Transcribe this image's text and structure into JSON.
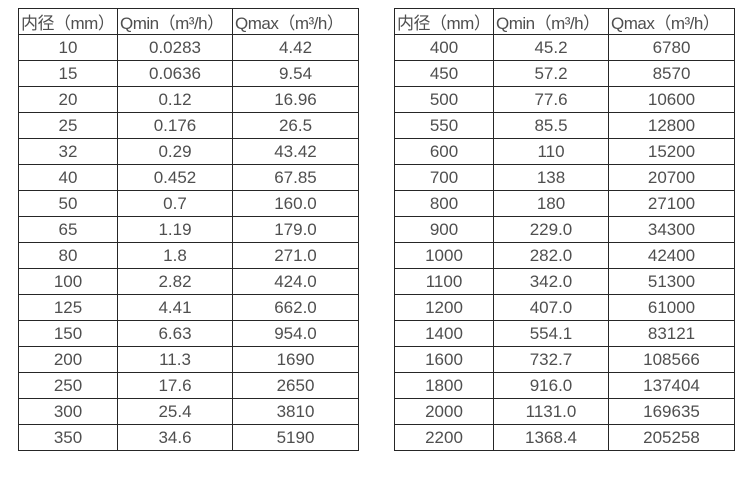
{
  "colors": {
    "background": "#ffffff",
    "border": "#262626",
    "text": "#4f4f4f"
  },
  "tables": [
    {
      "name": "flow-range-small-diameters",
      "headers": [
        "内径（mm）",
        "Qmin（m³/h）",
        "Qmax（m³/h）"
      ],
      "rows": [
        [
          "10",
          "0.0283",
          "4.42"
        ],
        [
          "15",
          "0.0636",
          "9.54"
        ],
        [
          "20",
          "0.12",
          "16.96"
        ],
        [
          "25",
          "0.176",
          "26.5"
        ],
        [
          "32",
          "0.29",
          "43.42"
        ],
        [
          "40",
          "0.452",
          "67.85"
        ],
        [
          "50",
          "0.7",
          "160.0"
        ],
        [
          "65",
          "1.19",
          "179.0"
        ],
        [
          "80",
          "1.8",
          "271.0"
        ],
        [
          "100",
          "2.82",
          "424.0"
        ],
        [
          "125",
          "4.41",
          "662.0"
        ],
        [
          "150",
          "6.63",
          "954.0"
        ],
        [
          "200",
          "11.3",
          "1690"
        ],
        [
          "250",
          "17.6",
          "2650"
        ],
        [
          "300",
          "25.4",
          "3810"
        ],
        [
          "350",
          "34.6",
          "5190"
        ]
      ]
    },
    {
      "name": "flow-range-large-diameters",
      "headers": [
        "内径（mm）",
        "Qmin（m³/h）",
        "Qmax（m³/h）"
      ],
      "rows": [
        [
          "400",
          "45.2",
          "6780"
        ],
        [
          "450",
          "57.2",
          "8570"
        ],
        [
          "500",
          "77.6",
          "10600"
        ],
        [
          "550",
          "85.5",
          "12800"
        ],
        [
          "600",
          "110",
          "15200"
        ],
        [
          "700",
          "138",
          "20700"
        ],
        [
          "800",
          "180",
          "27100"
        ],
        [
          "900",
          "229.0",
          "34300"
        ],
        [
          "1000",
          "282.0",
          "42400"
        ],
        [
          "1100",
          "342.0",
          "51300"
        ],
        [
          "1200",
          "407.0",
          "61000"
        ],
        [
          "1400",
          "554.1",
          "83121"
        ],
        [
          "1600",
          "732.7",
          "108566"
        ],
        [
          "1800",
          "916.0",
          "137404"
        ],
        [
          "2000",
          "1131.0",
          "169635"
        ],
        [
          "2200",
          "1368.4",
          "205258"
        ]
      ]
    }
  ]
}
